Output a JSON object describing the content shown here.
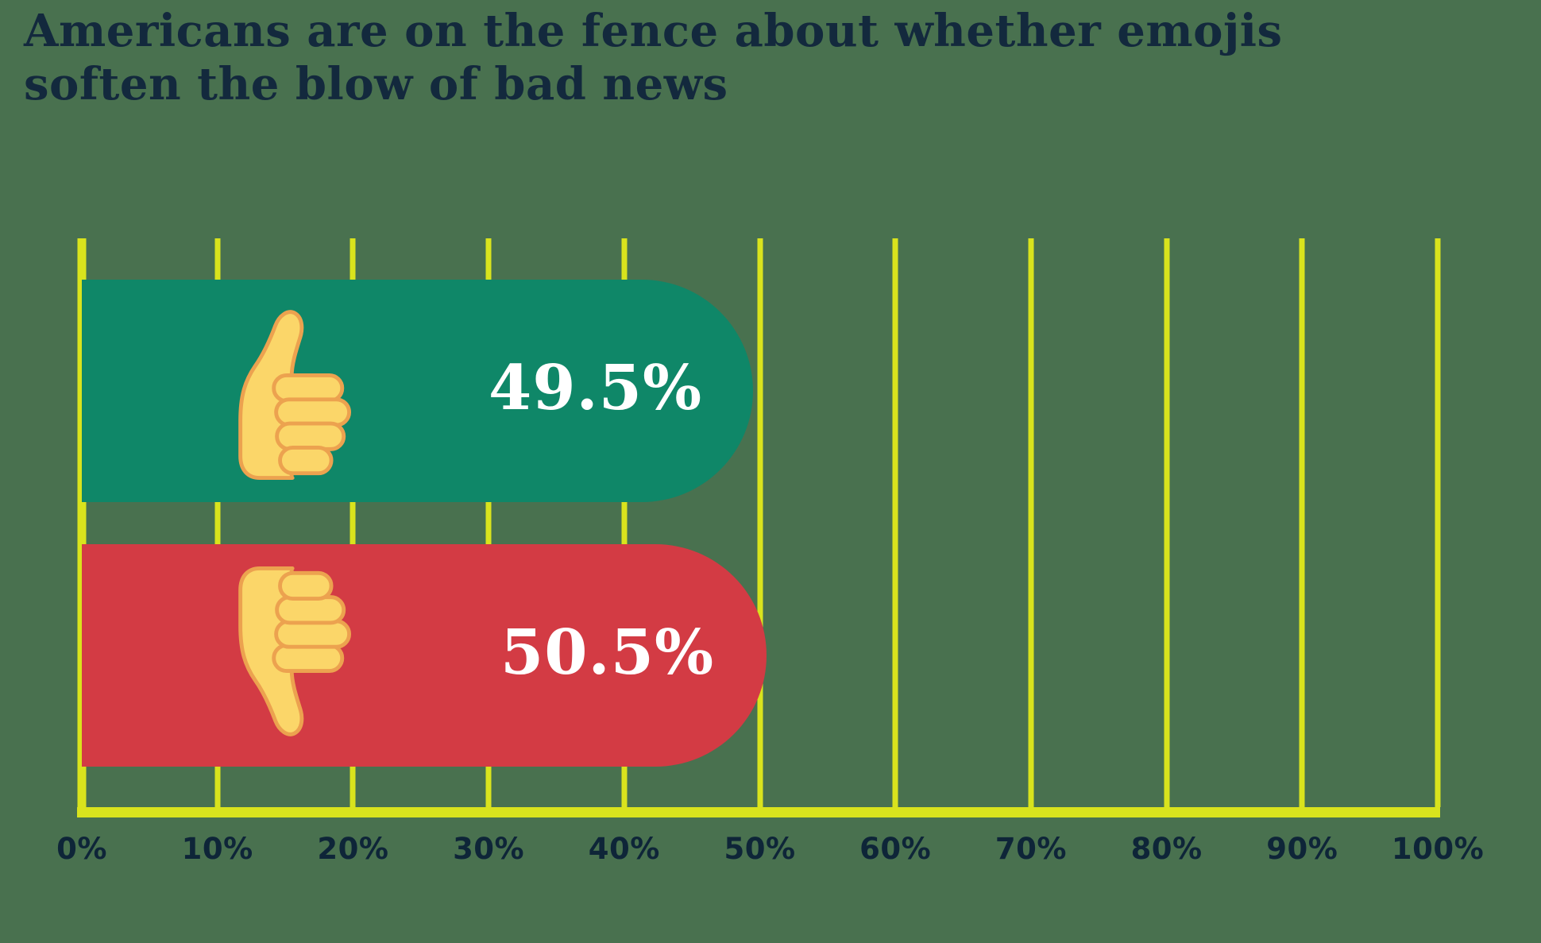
{
  "title": {
    "full": "Americans are on the fence about whether emojis soften the blow of bad news",
    "line1": "Americans are on the fence about whether emojis",
    "line2": "soften the blow of bad news"
  },
  "chart_data": {
    "type": "bar",
    "orientation": "horizontal",
    "title": "Americans are on the fence about whether emojis soften the blow of bad news",
    "categories": [
      "thumbs-up",
      "thumbs-down"
    ],
    "values": [
      49.5,
      50.5
    ],
    "value_labels": [
      "49.5%",
      "50.5%"
    ],
    "bar_colors": [
      "#0F8768",
      "#D33B44"
    ],
    "x_ticks": [
      "0%",
      "10%",
      "20%",
      "30%",
      "40%",
      "50%",
      "60%",
      "70%",
      "80%",
      "90%",
      "100%"
    ],
    "xlim": [
      0,
      100
    ],
    "xlabel": "",
    "ylabel": "",
    "grid": true,
    "legend": false
  },
  "icons": {
    "bar0": "thumbs-up-emoji",
    "bar1": "thumbs-down-emoji"
  },
  "colors": {
    "background": "#49714F",
    "title_text": "#13293D",
    "tick_text": "#0E2538",
    "grid_line": "#D9E31D",
    "bar_green": "#0F8768",
    "bar_red": "#D33B44",
    "bar_value_text": "#FFFFFF",
    "emoji_fill": "#FBD669",
    "emoji_outline": "#ECA24F"
  }
}
